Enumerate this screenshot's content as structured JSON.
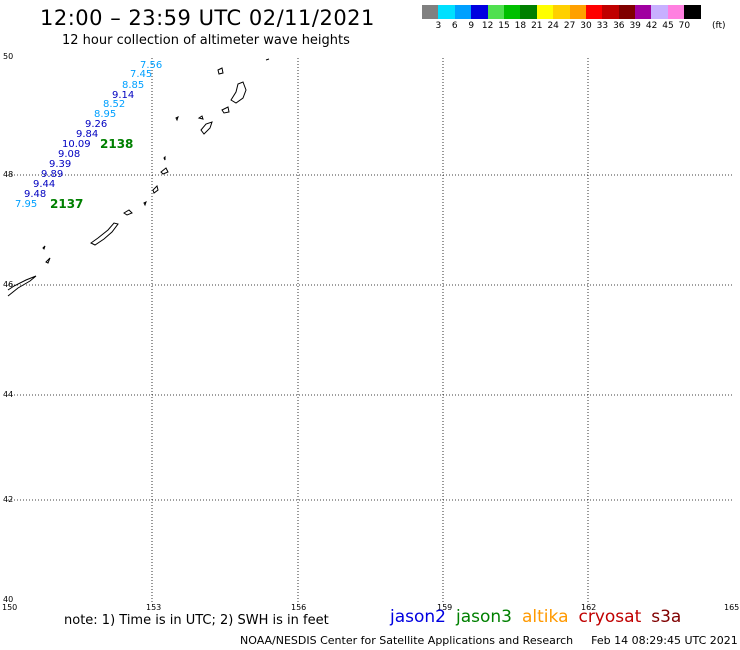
{
  "header": {
    "title": "12:00 – 23:59 UTC 02/11/2021",
    "subtitle": "12 hour collection of altimeter wave heights"
  },
  "legend": {
    "colors": [
      "#808080",
      "#00e0ff",
      "#00a0ff",
      "#0000e0",
      "#50e050",
      "#00c000",
      "#008000",
      "#ffff00",
      "#ffd000",
      "#ffa000",
      "#ff0000",
      "#c00000",
      "#800000",
      "#a000a0",
      "#c8b0ff",
      "#ff80e0",
      "#000000"
    ],
    "labels": [
      "3",
      "6",
      "9",
      "12",
      "15",
      "18",
      "21",
      "24",
      "27",
      "30",
      "33",
      "36",
      "39",
      "42",
      "45",
      "70"
    ],
    "unit": "(ft)"
  },
  "map": {
    "lat_labels": [
      "50",
      "48",
      "46",
      "44",
      "42",
      "40"
    ],
    "lon_labels": [
      "150",
      "153",
      "156",
      "159",
      "162",
      "165"
    ],
    "track_2138": {
      "id": "2138",
      "readings": [
        {
          "value": "7.56",
          "color": "#00a0ff"
        },
        {
          "value": "7.45",
          "color": "#00a0ff"
        },
        {
          "value": "8.85",
          "color": "#00a0ff"
        },
        {
          "value": "9.14",
          "color": "#0000c0"
        },
        {
          "value": "8.52",
          "color": "#00a0ff"
        },
        {
          "value": "8.95",
          "color": "#00a0ff"
        },
        {
          "value": "9.26",
          "color": "#0000c0"
        },
        {
          "value": "9.84",
          "color": "#0000c0"
        },
        {
          "value": "10.09",
          "color": "#0000c0"
        }
      ]
    },
    "track_2137": {
      "id": "2137",
      "readings": [
        {
          "value": "9.08",
          "color": "#0000c0"
        },
        {
          "value": "9.39",
          "color": "#0000c0"
        },
        {
          "value": "9.89",
          "color": "#0000c0"
        },
        {
          "value": "9.44",
          "color": "#0000c0"
        },
        {
          "value": "9.48",
          "color": "#0000c0"
        },
        {
          "value": "7.95",
          "color": "#00a0ff"
        }
      ]
    },
    "track_color": "#008000"
  },
  "footer": {
    "note": "note: 1) Time is in UTC; 2) SWH is in feet",
    "satellites": [
      {
        "name": "jason2",
        "color": "#0000e0"
      },
      {
        "name": "jason3",
        "color": "#008000"
      },
      {
        "name": "altika",
        "color": "#ff9900"
      },
      {
        "name": "cryosat",
        "color": "#c00000"
      },
      {
        "name": "s3a",
        "color": "#800000"
      }
    ],
    "credit": "NOAA/NESDIS Center for Satellite Applications and Research",
    "timestamp": "Feb 14 08:29:45 UTC 2021"
  }
}
